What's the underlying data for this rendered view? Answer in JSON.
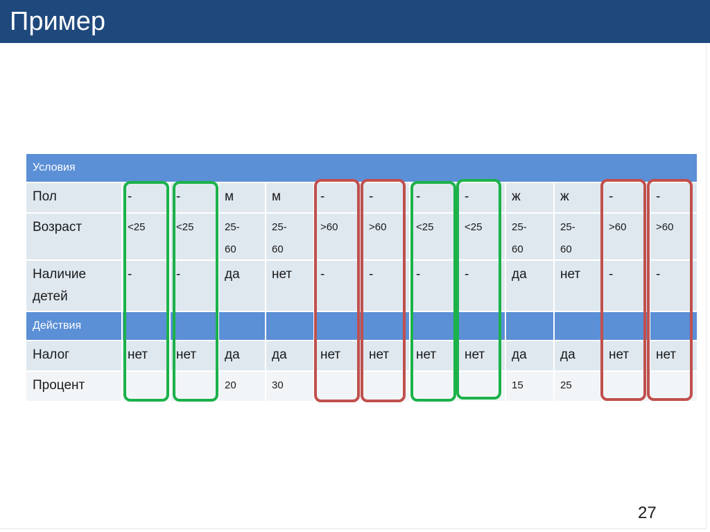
{
  "slide": {
    "title": "Пример",
    "page_number": "27"
  },
  "table": {
    "section_conditions": "Условия",
    "section_actions": "Действия",
    "rows": [
      {
        "label": "Пол",
        "cells": [
          "-",
          "-",
          "м",
          "м",
          "-",
          "-",
          "-",
          "-",
          "ж",
          "ж",
          "-",
          "-"
        ]
      },
      {
        "label": "Возраст",
        "cells": [
          "<25",
          "<25",
          "25-\n60",
          "25-\n60",
          ">60",
          ">60",
          "<25",
          "<25",
          "25-\n60",
          "25-\n60",
          ">60",
          ">60"
        ]
      },
      {
        "label": "Наличие детей",
        "cells": [
          "-",
          "-",
          "да",
          "нет",
          "-",
          "-",
          "-",
          "-",
          "да",
          "нет",
          "-",
          "-"
        ]
      },
      {
        "label": "Налог",
        "cells": [
          "нет",
          "нет",
          "да",
          "да",
          "нет",
          "нет",
          "нет",
          "нет",
          "да",
          "да",
          "нет",
          "нет"
        ]
      },
      {
        "label": "Процент",
        "cells": [
          "",
          "",
          "20",
          "30",
          "",
          "",
          "",
          "",
          "15",
          "25",
          "",
          ""
        ]
      }
    ],
    "highlights": [
      {
        "column": 1,
        "color": "#1bb24a"
      },
      {
        "column": 2,
        "color": "#1bb24a"
      },
      {
        "column": 5,
        "color": "#c0504d"
      },
      {
        "column": 6,
        "color": "#c0504d"
      },
      {
        "column": 7,
        "color": "#1bb24a"
      },
      {
        "column": 8,
        "color": "#1bb24a"
      },
      {
        "column": 11,
        "color": "#c0504d"
      },
      {
        "column": 12,
        "color": "#c0504d"
      }
    ]
  },
  "colors": {
    "header": "#1f497d",
    "section_band": "#5b8fd6",
    "row_shade": "#dfe8ef",
    "green_highlight": "#1bb24a",
    "red_highlight": "#c0504d"
  }
}
